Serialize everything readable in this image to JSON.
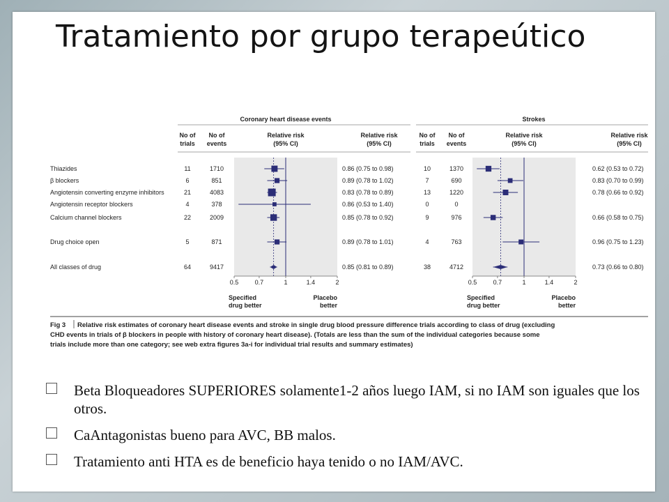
{
  "slide": {
    "title": "Tratamiento por grupo terapeútico",
    "bullets": [
      "Beta Bloqueadores SUPERIORES solamente1-2 años luego IAM, si no IAM son iguales que los otros.",
      "CaAntagonistas bueno para AVC, BB malos.",
      "Tratamiento anti HTA es de beneficio haya tenido o no IAM/AVC."
    ]
  },
  "chart_data": {
    "type": "forest",
    "scale": "log",
    "xlim": [
      0.5,
      2
    ],
    "ticks": [
      "0.5",
      "0.7",
      "1",
      "1.4",
      "2"
    ],
    "tick_values": [
      0.5,
      0.7,
      1,
      1.4,
      2
    ],
    "col_headers": {
      "trials": [
        "No of",
        "trials"
      ],
      "events": [
        "No of",
        "events"
      ],
      "rr": [
        "Relative risk",
        "(95% CI)"
      ],
      "rrtext": [
        "Relative risk",
        "(95% CI)"
      ]
    },
    "left_label": [
      "Specified",
      "drug better"
    ],
    "right_label": [
      "Placebo",
      "better"
    ],
    "caption_prefix": "Fig 3",
    "caption_lines": [
      "Relative risk estimates of coronary heart disease events and stroke in single drug blood pressure difference trials according to class of drug (excluding",
      "CHD events in trials of β blockers in people with history of coronary heart disease). (Totals are less than the sum of the individual categories because some",
      "trials include more than one category; see web extra figures 3a-i for individual trial results and summary estimates)"
    ],
    "categories": [
      "Thiazides",
      "β blockers",
      "Angiotensin converting enzyme inhibitors",
      "Angiotensin receptor blockers",
      "Calcium channel blockers",
      "Drug choice open",
      "All classes of drug"
    ],
    "panels": [
      {
        "title": "Coronary heart disease events",
        "pooled": 0.85,
        "rows": [
          {
            "trials": "11",
            "events": "1710",
            "rr": 0.86,
            "lo": 0.75,
            "hi": 0.98,
            "text": "0.86 (0.75 to 0.98)"
          },
          {
            "trials": "6",
            "events": "851",
            "rr": 0.89,
            "lo": 0.78,
            "hi": 1.02,
            "text": "0.89 (0.78 to 1.02)"
          },
          {
            "trials": "21",
            "events": "4083",
            "rr": 0.83,
            "lo": 0.78,
            "hi": 0.89,
            "text": "0.83 (0.78 to 0.89)"
          },
          {
            "trials": "4",
            "events": "378",
            "rr": 0.86,
            "lo": 0.53,
            "hi": 1.4,
            "text": "0.86 (0.53 to 1.40)"
          },
          {
            "trials": "22",
            "events": "2009",
            "rr": 0.85,
            "lo": 0.78,
            "hi": 0.92,
            "text": "0.85 (0.78 to 0.92)"
          },
          {
            "trials": "5",
            "events": "871",
            "rr": 0.89,
            "lo": 0.78,
            "hi": 1.01,
            "text": "0.89 (0.78 to 1.01)"
          },
          {
            "trials": "64",
            "events": "9417",
            "rr": 0.85,
            "lo": 0.81,
            "hi": 0.89,
            "text": "0.85 (0.81 to 0.89)",
            "summary": true
          }
        ]
      },
      {
        "title": "Strokes",
        "pooled": 0.73,
        "rows": [
          {
            "trials": "10",
            "events": "1370",
            "rr": 0.62,
            "lo": 0.53,
            "hi": 0.72,
            "text": "0.62 (0.53 to 0.72)"
          },
          {
            "trials": "7",
            "events": "690",
            "rr": 0.83,
            "lo": 0.7,
            "hi": 0.99,
            "text": "0.83 (0.70 to 0.99)"
          },
          {
            "trials": "13",
            "events": "1220",
            "rr": 0.78,
            "lo": 0.66,
            "hi": 0.92,
            "text": "0.78 (0.66 to 0.92)"
          },
          {
            "trials": "0",
            "events": "0",
            "rr": null,
            "lo": null,
            "hi": null,
            "text": ""
          },
          {
            "trials": "9",
            "events": "976",
            "rr": 0.66,
            "lo": 0.58,
            "hi": 0.75,
            "text": "0.66 (0.58 to 0.75)"
          },
          {
            "trials": "4",
            "events": "763",
            "rr": 0.96,
            "lo": 0.75,
            "hi": 1.23,
            "text": "0.96 (0.75 to 1.23)"
          },
          {
            "trials": "38",
            "events": "4712",
            "rr": 0.73,
            "lo": 0.66,
            "hi": 0.8,
            "text": "0.73 (0.66 to 0.80)",
            "summary": true
          }
        ]
      }
    ],
    "colors": {
      "marker": "#2b2d77",
      "ci": "#2b2d77",
      "plot_bg": "#e9e9e9",
      "ref_line": "#2b2d77"
    }
  }
}
